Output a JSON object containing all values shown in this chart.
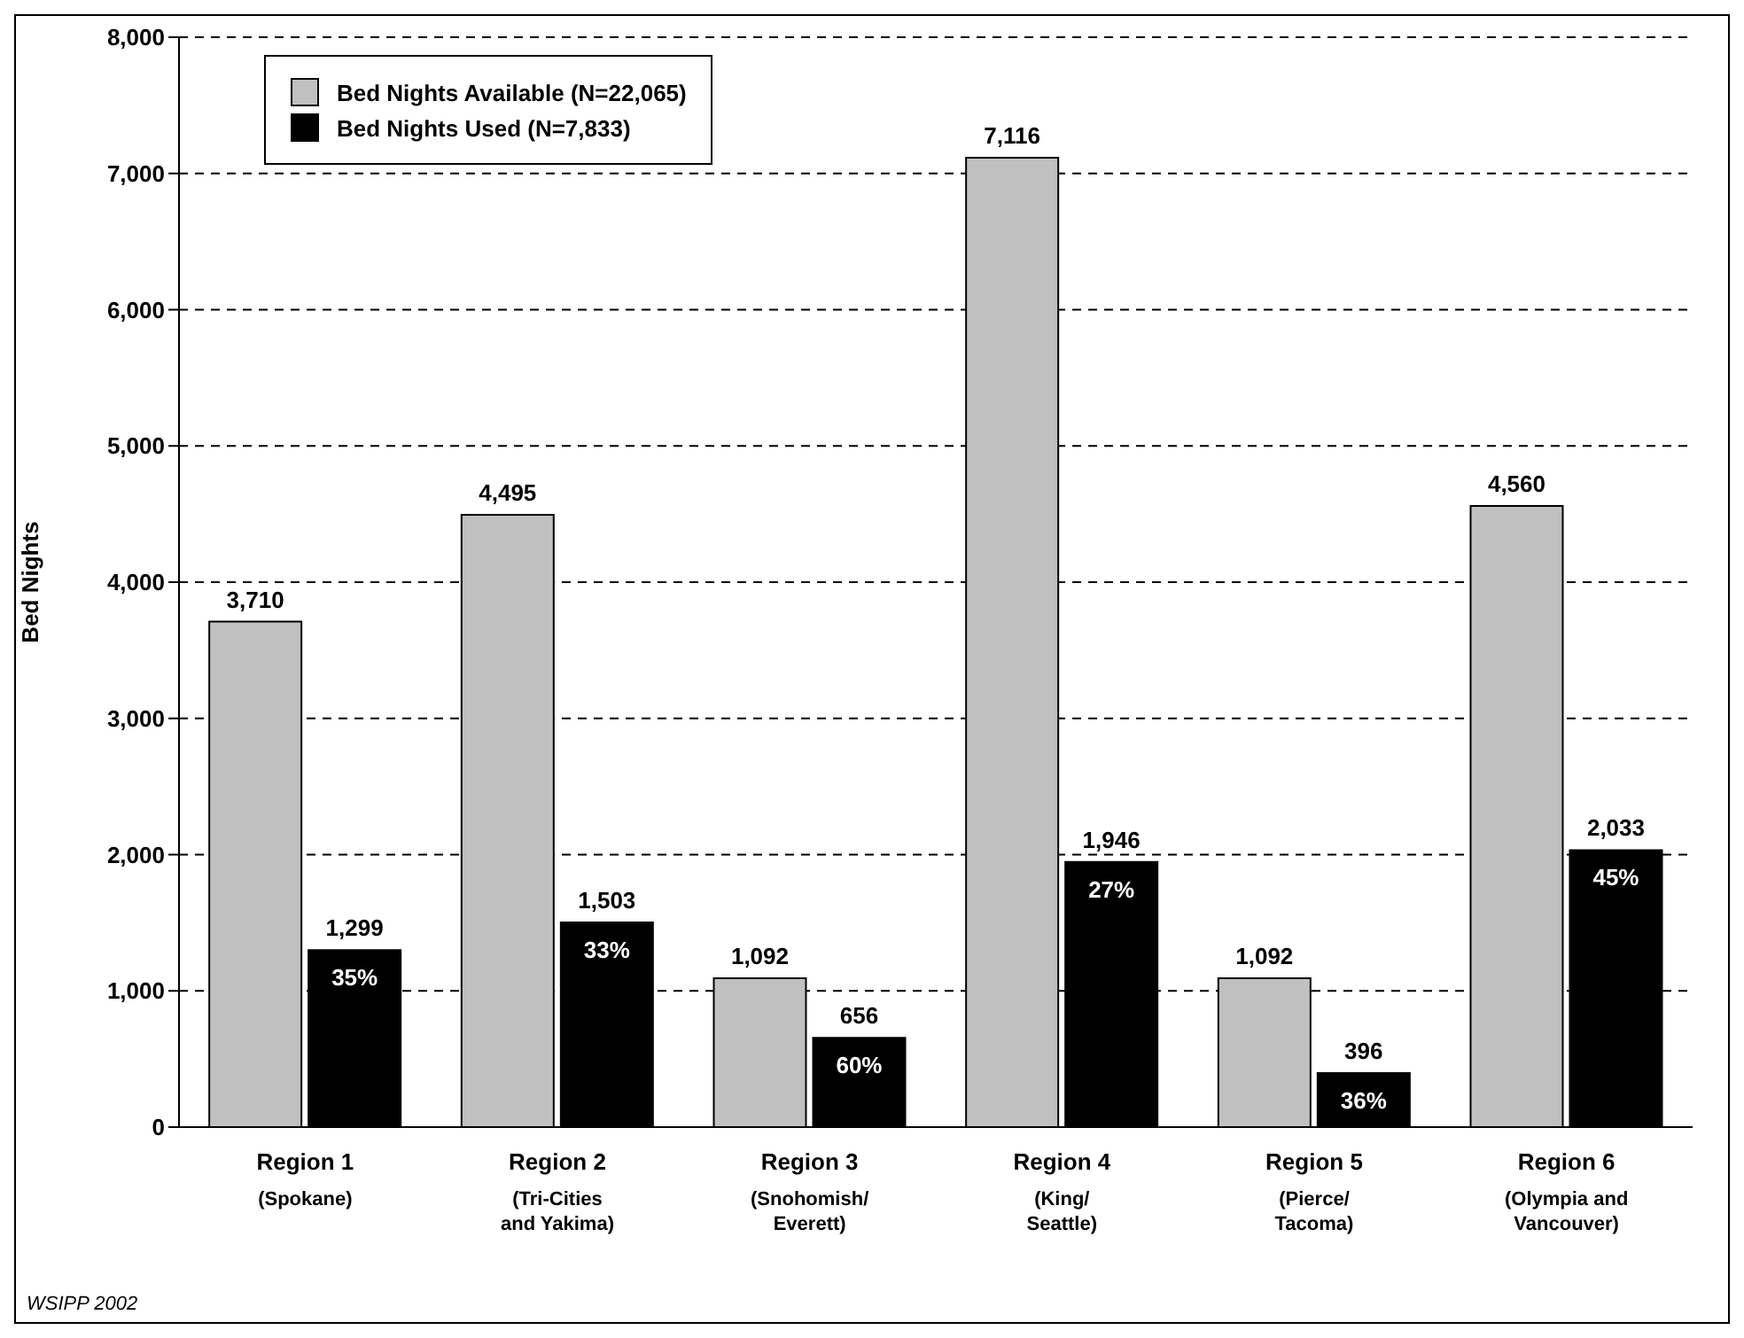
{
  "chart_data": {
    "type": "bar",
    "categories": [
      "Region 1\n(Spokane)",
      "Region 2\n(Tri-Cities\nand Yakima)",
      "Region 3\n(Snohomish/\nEverett)",
      "Region 4\n(King/\nSeattle)",
      "Region 5\n(Pierce/\nTacoma)",
      "Region 6\n(Olympia and\nVancouver)"
    ],
    "series": [
      {
        "name": "Bed Nights Available (N=22,065)",
        "color": "#c0c0c0",
        "values": [
          3710,
          4495,
          1092,
          7116,
          1092,
          4560
        ],
        "value_labels": [
          "3,710",
          "4,495",
          "1,092",
          "7,116",
          "1,092",
          "4,560"
        ]
      },
      {
        "name": "Bed Nights Used (N=7,833)",
        "color": "#000000",
        "values": [
          1299,
          1503,
          656,
          1946,
          396,
          2033
        ],
        "value_labels": [
          "1,299",
          "1,503",
          "656",
          "1,946",
          "396",
          "2,033"
        ]
      }
    ],
    "ylabel": "Bed Nights",
    "ylim": [
      0,
      8000
    ],
    "yticks": [
      0,
      {
        "value": 1000,
        "label": "1,000"
      },
      {
        "value": 2000,
        "label": "2,000"
      },
      {
        "value": 3000,
        "label": "3,000"
      },
      {
        "value": 4000,
        "label": "4,000"
      },
      {
        "value": 5000,
        "label": "5,000"
      },
      {
        "value": 6000,
        "label": "6,000"
      },
      {
        "value": 7000,
        "label": "7,000"
      },
      {
        "value": 8000,
        "label": "8,000"
      }
    ],
    "grid": "y",
    "legend": "top left",
    "annotations": [
      {
        "text": "35%",
        "x": "Region 1\n(Spokane)",
        "y": 1299
      },
      {
        "text": "33%",
        "x": "Region 2\n(Tri-Cities\nand Yakima)",
        "y": 1503
      },
      {
        "text": "60%",
        "x": "Region 3\n(Snohomish/\nEverett)",
        "y": 656
      },
      {
        "text": "27%",
        "x": "Region 4\n(King/\nSeattle)",
        "y": 1946
      },
      {
        "text": "36%",
        "x": "Region 5\n(Pierce/\nTacoma)",
        "y": 396
      },
      {
        "text": "45%",
        "x": "Region 6\n(Olympia and\nVancouver)",
        "y": 2033
      },
      "WSIPP 2002"
    ]
  }
}
